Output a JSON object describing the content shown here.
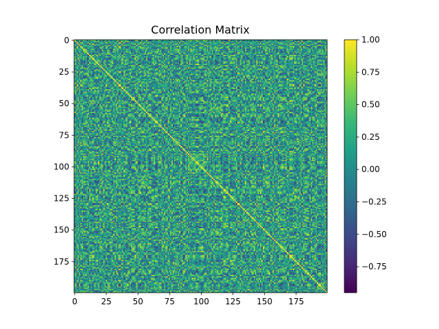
{
  "chart_data": {
    "type": "heatmap",
    "title": "Correlation Matrix",
    "xlabel": "",
    "ylabel": "",
    "n_rows": 200,
    "n_cols": 200,
    "x_ticks": [
      0,
      25,
      50,
      75,
      100,
      125,
      150,
      175
    ],
    "y_ticks": [
      0,
      25,
      50,
      75,
      100,
      125,
      150,
      175
    ],
    "x_tick_labels": [
      "0",
      "25",
      "50",
      "75",
      "100",
      "125",
      "150",
      "175"
    ],
    "y_tick_labels": [
      "0",
      "25",
      "50",
      "75",
      "100",
      "125",
      "150",
      "175"
    ],
    "diagonal_value": 1.0,
    "value_range": [
      -0.95,
      1.0
    ],
    "colormap": "viridis",
    "colormap_stops": [
      "#440154",
      "#482878",
      "#3e4989",
      "#31688e",
      "#26828e",
      "#1f9e89",
      "#35b779",
      "#6ece58",
      "#b5de2b",
      "#fde725"
    ],
    "colorbar_ticks": [
      1.0,
      0.75,
      0.5,
      0.25,
      0.0,
      -0.25,
      -0.5,
      -0.75
    ],
    "colorbar_tick_labels": [
      "1.00",
      "0.75",
      "0.50",
      "0.25",
      "0.00",
      "−0.25",
      "−0.50",
      "−0.75"
    ],
    "grid": false,
    "legend": "colorbar-right"
  }
}
